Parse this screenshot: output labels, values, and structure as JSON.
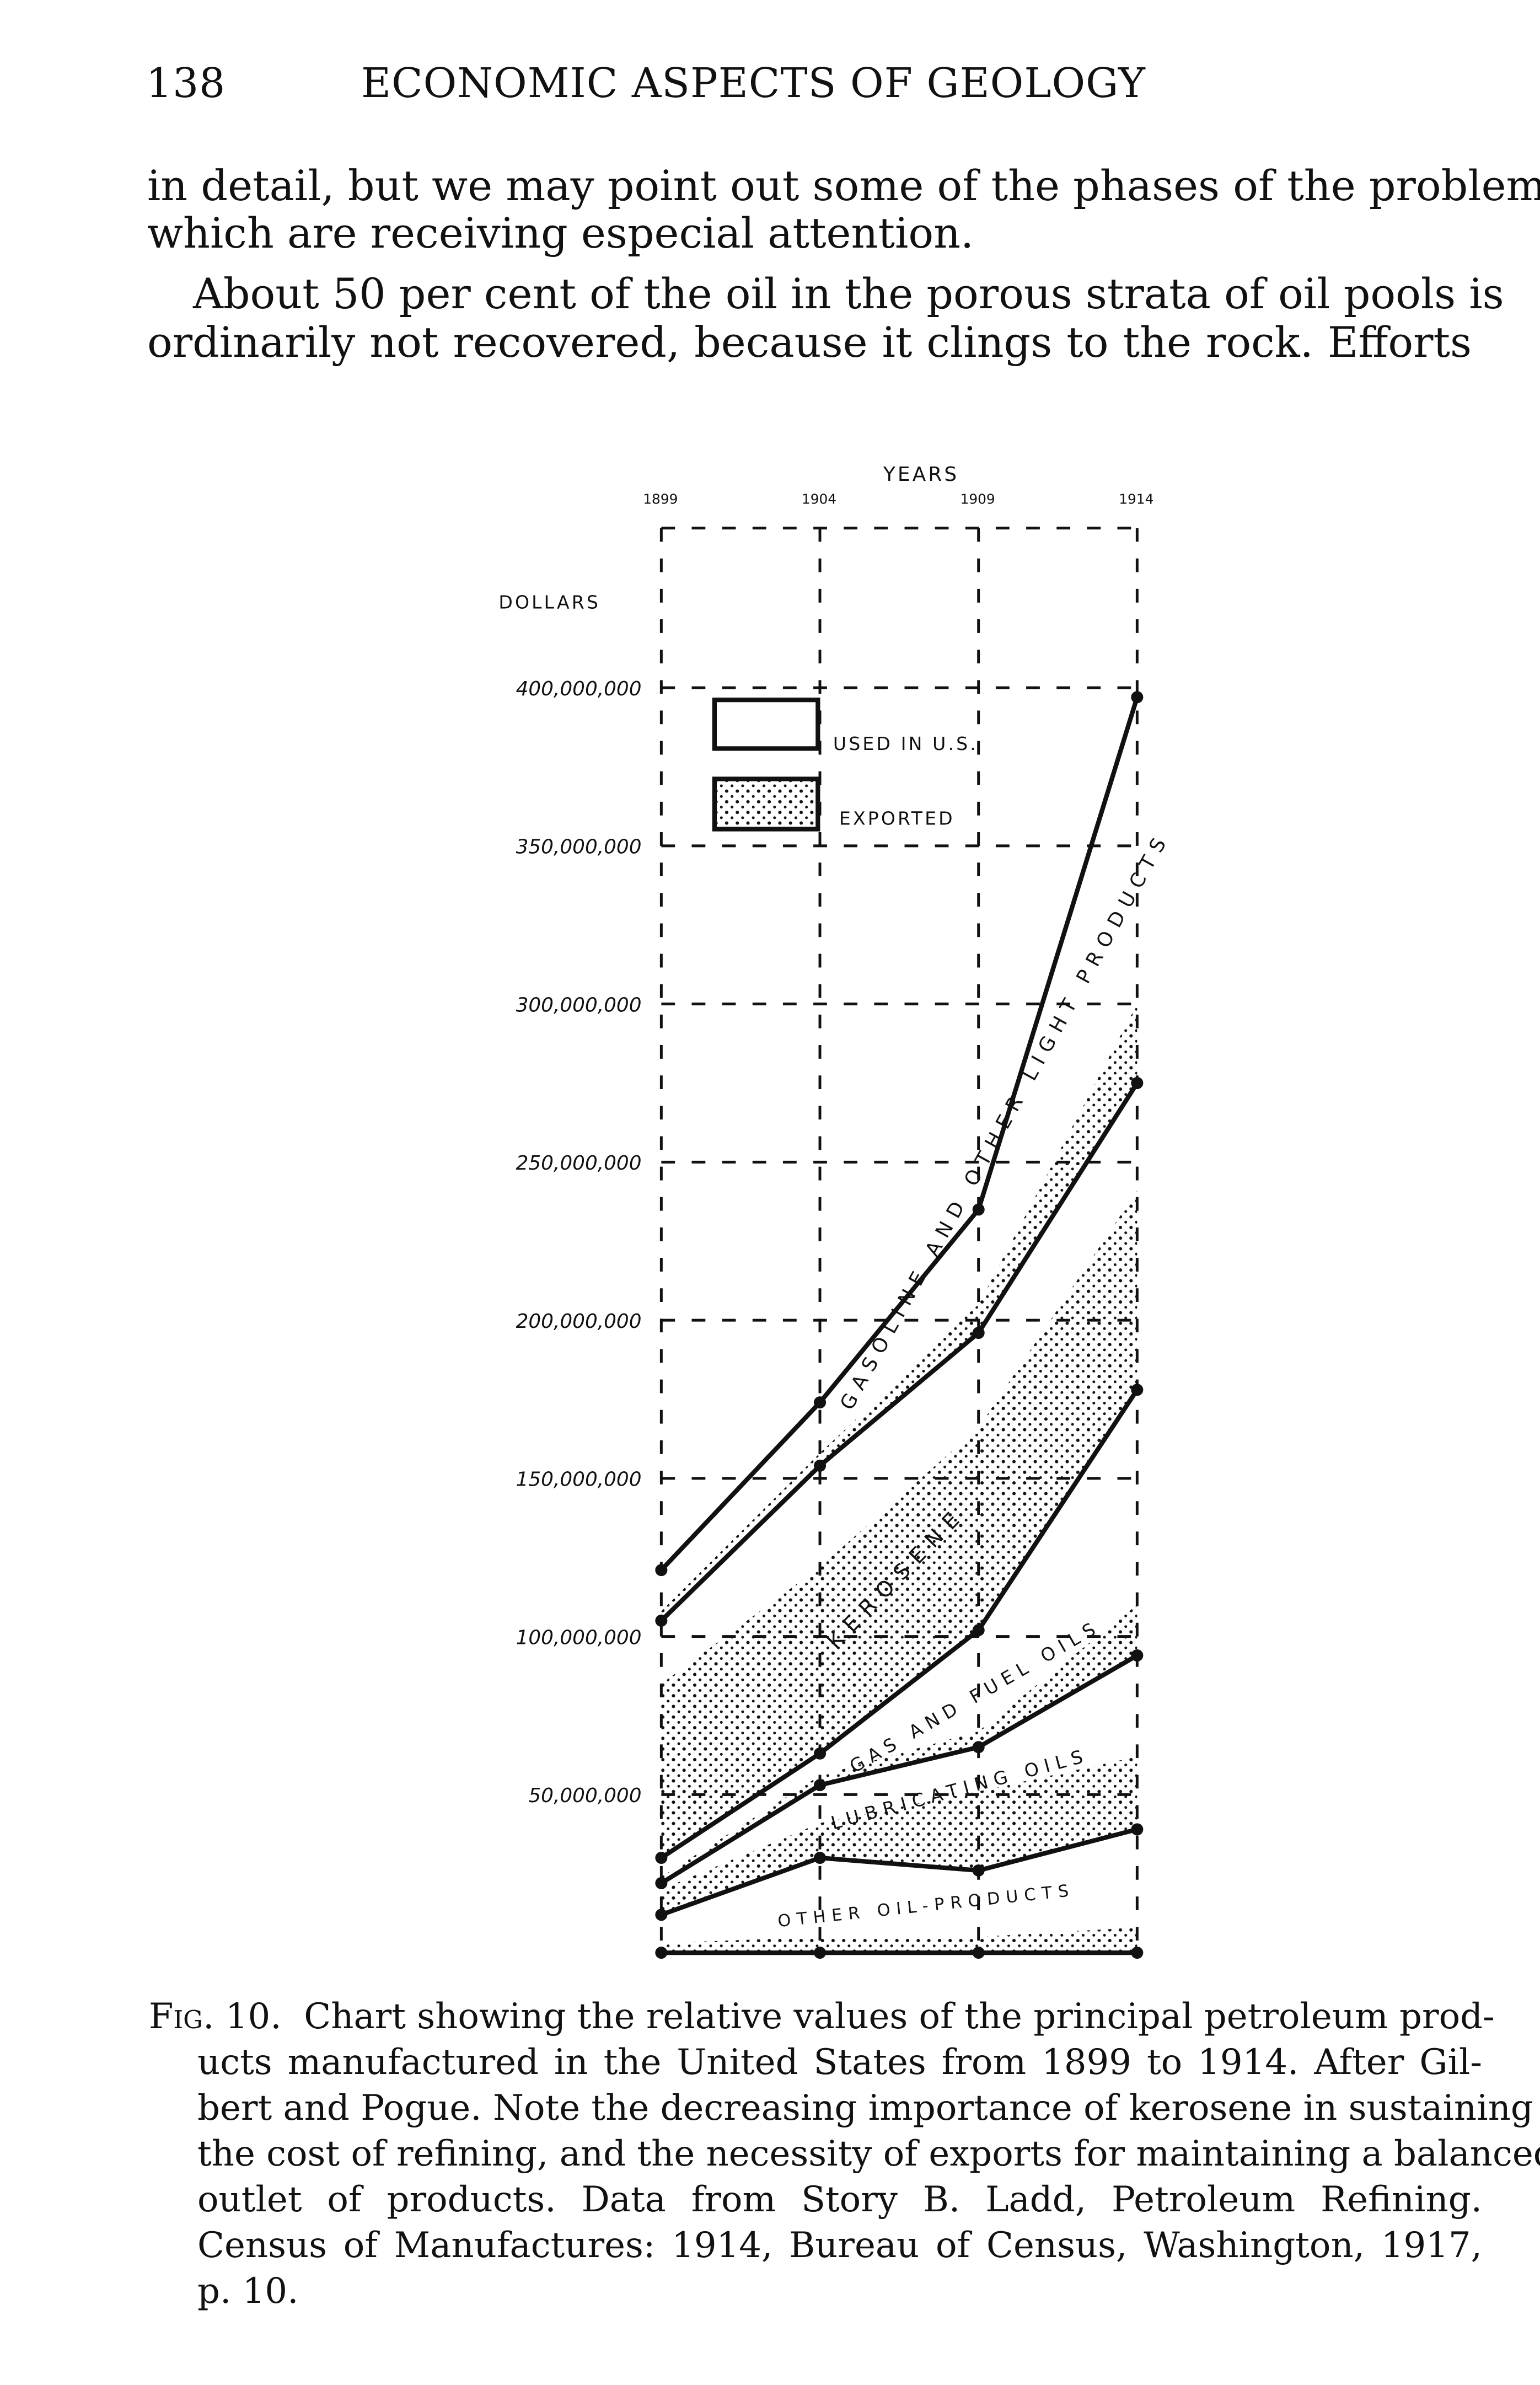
{
  "header": {
    "page_number": "138",
    "running_title": "ECONOMIC ASPECTS OF GEOLOGY"
  },
  "body_text": [
    "in detail, but we may point out some of the phases of the problem",
    "which are receiving especial attention.",
    "About 50 per cent of the oil in the porous strata of oil pools is",
    "ordinarily not recovered, because it clings to the rock.  Efforts"
  ],
  "caption": {
    "label": "Fig. 10.",
    "lines": [
      "Chart showing the relative values of the principal petroleum prod-",
      "ucts manufactured in the United States from 1899 to 1914.  After Gil-",
      "bert and Pogue.  Note the decreasing importance of kerosene in sustaining",
      "the cost of refining, and the necessity of exports for maintaining a balanced",
      "outlet of products.  Data from Story B. Ladd, Petroleum Refining.",
      "Census of Manufactures: 1914, Bureau of Census, Washington, 1917,",
      "p. 10."
    ]
  },
  "chart_data": {
    "type": "area",
    "stacked": true,
    "xlabel": "YEARS",
    "ylabel": "DOLLARS",
    "x": [
      1899,
      1904,
      1909,
      1914
    ],
    "x_tick_labels": [
      "1899",
      "1904",
      "1909",
      "1914"
    ],
    "ylim": [
      0,
      400000000
    ],
    "y_ticks": [
      50000000,
      100000000,
      150000000,
      200000000,
      250000000,
      300000000,
      350000000,
      400000000
    ],
    "y_tick_labels": [
      "50,000,000",
      "100,000,000",
      "150,000,000",
      "200,000,000",
      "250,000,000",
      "300,000,000",
      "350,000,000",
      "400,000,000"
    ],
    "grid": true,
    "legend": {
      "placement": "top-left",
      "entries": [
        {
          "label": "USED IN U.S.",
          "fill": "plain"
        },
        {
          "label": "EXPORTED",
          "fill": "dotted"
        }
      ]
    },
    "units_note": "cumulative values in dollars",
    "series": [
      {
        "name": "OTHER OIL-PRODUCTS",
        "lower": [
          0,
          0,
          0,
          0
        ],
        "upper": [
          12000000,
          30000000,
          26000000,
          39000000
        ],
        "exported_upper": [
          3000000,
          5000000,
          5000000,
          8000000
        ]
      },
      {
        "name": "LUBRICATING OILS",
        "lower": [
          12000000,
          30000000,
          26000000,
          39000000
        ],
        "upper": [
          22000000,
          53000000,
          65000000,
          94000000
        ],
        "exported_upper": [
          20000000,
          41000000,
          51000000,
          62000000
        ]
      },
      {
        "name": "GAS AND FUEL OILS",
        "lower": [
          22000000,
          53000000,
          65000000,
          94000000
        ],
        "upper": [
          30000000,
          63000000,
          102000000,
          178000000
        ],
        "exported_upper": [
          24000000,
          56000000,
          70000000,
          110000000
        ]
      },
      {
        "name": "KEROSENE",
        "lower": [
          30000000,
          63000000,
          102000000,
          178000000
        ],
        "upper": [
          105000000,
          154000000,
          196000000,
          275000000
        ],
        "exported_upper": [
          85000000,
          122000000,
          166000000,
          241000000
        ]
      },
      {
        "name": "GASOLINE AND OTHER LIGHT PRODUCTS",
        "lower": [
          105000000,
          154000000,
          196000000,
          275000000
        ],
        "upper": [
          121000000,
          174000000,
          235000000,
          397000000
        ],
        "exported_upper": [
          108000000,
          158000000,
          205000000,
          300000000
        ]
      }
    ]
  }
}
